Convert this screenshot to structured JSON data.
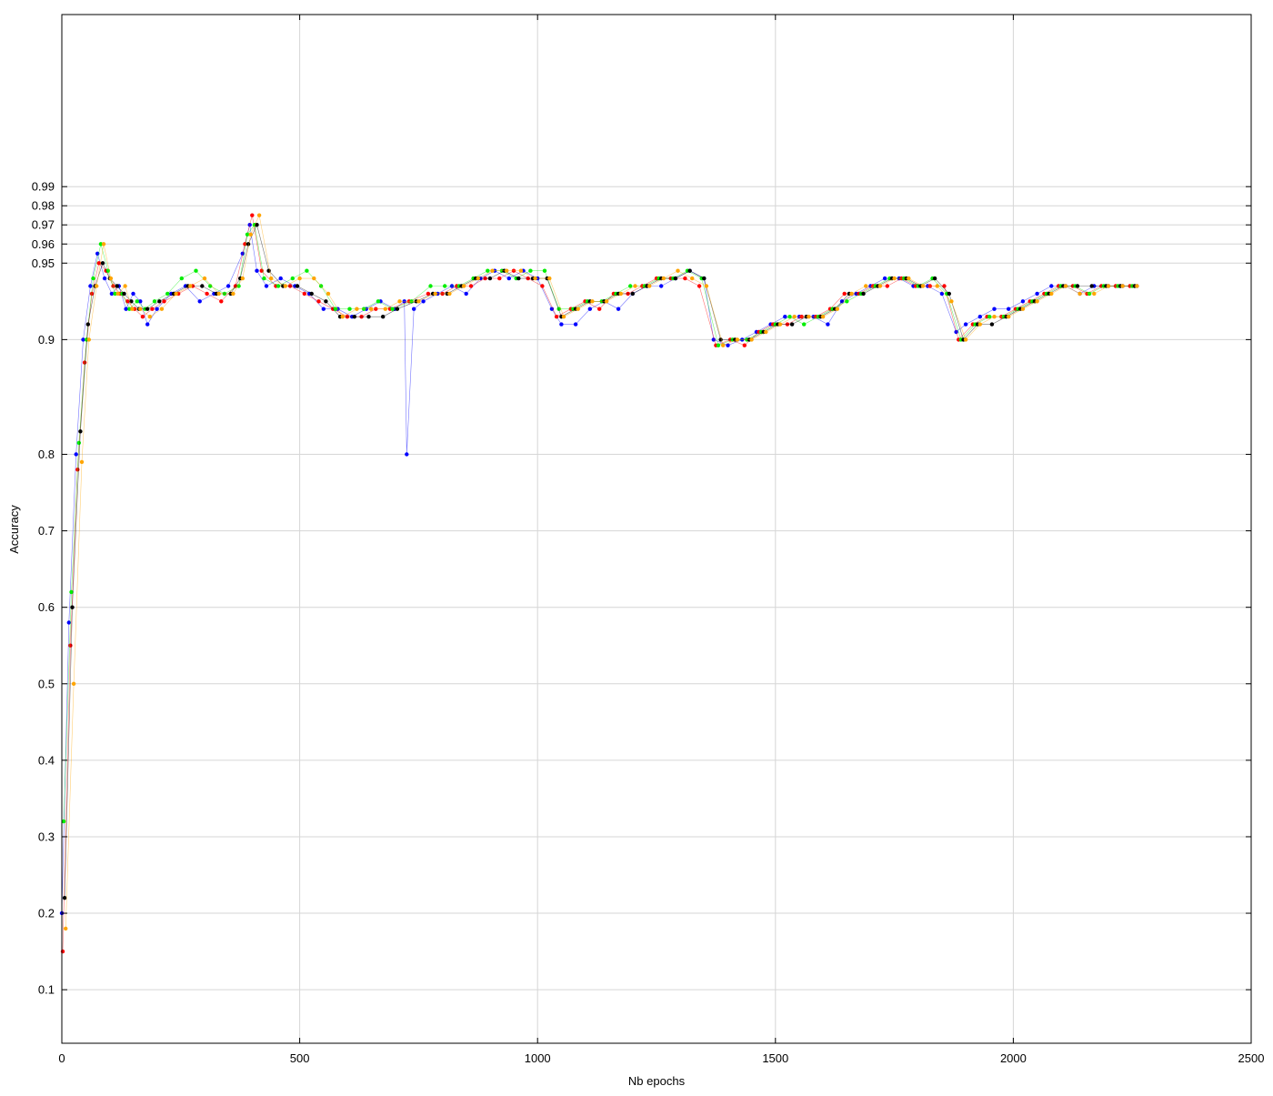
{
  "chart_data": {
    "type": "scatter",
    "title": "",
    "xlabel": "Nb epochs",
    "ylabel": "Accuracy",
    "xlim": [
      0,
      2500
    ],
    "ylim": [
      0.03,
      1.08
    ],
    "y_scale": "nonlinear, expanded near 1",
    "grid": true,
    "legend": "none",
    "x_ticks": [
      0,
      500,
      1000,
      1500,
      2000,
      2500
    ],
    "x_tick_labels": [
      "0",
      "500",
      "1000",
      "1500",
      "2000",
      "2500"
    ],
    "y_ticks": [
      0.1,
      0.2,
      0.3,
      0.4,
      0.5,
      0.6,
      0.7,
      0.8,
      0.9,
      0.95,
      0.96,
      0.97,
      0.98,
      0.99
    ],
    "y_tick_labels": [
      "0.1",
      "0.2",
      "0.3",
      "0.4",
      "0.5",
      "0.6",
      "0.7",
      "0.8",
      "0.9",
      "0.95",
      "0.96",
      "0.97",
      "0.98",
      "0.99"
    ],
    "series_colors": [
      "#0000ff",
      "#ff0000",
      "#00ee00",
      "#000000",
      "#ffa500"
    ],
    "series": [
      {
        "color": "#0000ff",
        "x": [
          0,
          15,
          30,
          45,
          60,
          75,
          90,
          105,
          120,
          135,
          150,
          165,
          180,
          200,
          230,
          260,
          290,
          320,
          350,
          380,
          395,
          410,
          430,
          460,
          490,
          520,
          550,
          580,
          610,
          640,
          670,
          700,
          720,
          725,
          740,
          760,
          790,
          820,
          850,
          880,
          910,
          940,
          970,
          1000,
          1030,
          1050,
          1080,
          1110,
          1140,
          1170,
          1200,
          1230,
          1260,
          1290,
          1320,
          1350,
          1370,
          1400,
          1430,
          1460,
          1490,
          1520,
          1550,
          1580,
          1610,
          1640,
          1670,
          1700,
          1730,
          1760,
          1790,
          1820,
          1850,
          1880,
          1900,
          1930,
          1960,
          1990,
          2020,
          2050,
          2080,
          2110,
          2140,
          2170,
          2200,
          2230,
          2260
        ],
        "y": [
          0.2,
          0.58,
          0.8,
          0.9,
          0.935,
          0.955,
          0.94,
          0.93,
          0.935,
          0.92,
          0.93,
          0.925,
          0.91,
          0.92,
          0.93,
          0.935,
          0.925,
          0.93,
          0.935,
          0.955,
          0.97,
          0.945,
          0.935,
          0.94,
          0.935,
          0.93,
          0.92,
          0.92,
          0.915,
          0.92,
          0.925,
          0.92,
          0.925,
          0.8,
          0.92,
          0.925,
          0.93,
          0.935,
          0.93,
          0.94,
          0.945,
          0.94,
          0.945,
          0.94,
          0.92,
          0.91,
          0.91,
          0.92,
          0.925,
          0.92,
          0.93,
          0.935,
          0.935,
          0.94,
          0.945,
          0.94,
          0.9,
          0.895,
          0.9,
          0.905,
          0.91,
          0.915,
          0.915,
          0.915,
          0.91,
          0.925,
          0.93,
          0.935,
          0.94,
          0.94,
          0.935,
          0.935,
          0.93,
          0.905,
          0.91,
          0.915,
          0.92,
          0.92,
          0.925,
          0.93,
          0.935,
          0.935,
          0.93,
          0.935,
          0.935,
          0.935,
          0.935
        ]
      },
      {
        "color": "#ff0000",
        "x": [
          2,
          18,
          33,
          48,
          63,
          78,
          93,
          108,
          123,
          138,
          153,
          170,
          190,
          215,
          245,
          275,
          305,
          335,
          365,
          385,
          400,
          420,
          450,
          480,
          510,
          540,
          570,
          600,
          630,
          660,
          690,
          730,
          770,
          800,
          830,
          860,
          890,
          920,
          950,
          980,
          1010,
          1040,
          1070,
          1100,
          1130,
          1160,
          1190,
          1220,
          1250,
          1280,
          1310,
          1340,
          1375,
          1405,
          1435,
          1465,
          1495,
          1525,
          1555,
          1585,
          1615,
          1645,
          1675,
          1705,
          1735,
          1765,
          1795,
          1825,
          1855,
          1885,
          1915,
          1945,
          1975,
          2005,
          2035,
          2065,
          2095,
          2125,
          2155,
          2185,
          2215,
          2245
        ],
        "y": [
          0.15,
          0.55,
          0.78,
          0.88,
          0.93,
          0.95,
          0.945,
          0.935,
          0.93,
          0.925,
          0.92,
          0.915,
          0.92,
          0.925,
          0.93,
          0.935,
          0.93,
          0.925,
          0.935,
          0.96,
          0.975,
          0.945,
          0.935,
          0.935,
          0.93,
          0.925,
          0.92,
          0.915,
          0.915,
          0.92,
          0.92,
          0.925,
          0.93,
          0.93,
          0.935,
          0.935,
          0.94,
          0.94,
          0.945,
          0.94,
          0.935,
          0.915,
          0.92,
          0.925,
          0.92,
          0.93,
          0.93,
          0.935,
          0.94,
          0.94,
          0.94,
          0.935,
          0.895,
          0.9,
          0.895,
          0.905,
          0.91,
          0.91,
          0.915,
          0.915,
          0.92,
          0.93,
          0.93,
          0.935,
          0.935,
          0.94,
          0.935,
          0.935,
          0.935,
          0.9,
          0.91,
          0.915,
          0.915,
          0.92,
          0.925,
          0.93,
          0.935,
          0.935,
          0.93,
          0.935,
          0.935,
          0.935
        ]
      },
      {
        "color": "#00ee00",
        "x": [
          4,
          20,
          36,
          52,
          66,
          82,
          97,
          112,
          127,
          142,
          158,
          175,
          195,
          222,
          252,
          282,
          312,
          342,
          372,
          390,
          405,
          425,
          455,
          485,
          515,
          545,
          575,
          605,
          635,
          665,
          695,
          735,
          775,
          805,
          835,
          865,
          895,
          925,
          955,
          985,
          1015,
          1045,
          1075,
          1105,
          1135,
          1165,
          1195,
          1225,
          1255,
          1285,
          1315,
          1345,
          1380,
          1410,
          1440,
          1470,
          1500,
          1530,
          1560,
          1590,
          1620,
          1650,
          1680,
          1710,
          1740,
          1770,
          1800,
          1830,
          1860,
          1890,
          1920,
          1950,
          1980,
          2010,
          2040,
          2070,
          2100,
          2130,
          2160,
          2190,
          2220,
          2250
        ],
        "y": [
          0.32,
          0.62,
          0.81,
          0.9,
          0.94,
          0.96,
          0.945,
          0.93,
          0.93,
          0.92,
          0.925,
          0.92,
          0.925,
          0.93,
          0.94,
          0.945,
          0.935,
          0.93,
          0.935,
          0.965,
          0.97,
          0.94,
          0.935,
          0.94,
          0.945,
          0.935,
          0.92,
          0.92,
          0.92,
          0.925,
          0.92,
          0.925,
          0.935,
          0.935,
          0.935,
          0.94,
          0.945,
          0.945,
          0.94,
          0.945,
          0.945,
          0.92,
          0.92,
          0.925,
          0.925,
          0.93,
          0.935,
          0.935,
          0.94,
          0.94,
          0.945,
          0.94,
          0.895,
          0.9,
          0.9,
          0.905,
          0.91,
          0.915,
          0.91,
          0.915,
          0.92,
          0.925,
          0.93,
          0.935,
          0.94,
          0.94,
          0.935,
          0.94,
          0.93,
          0.9,
          0.91,
          0.915,
          0.915,
          0.92,
          0.925,
          0.93,
          0.935,
          0.935,
          0.93,
          0.935,
          0.935,
          0.935
        ]
      },
      {
        "color": "#000000",
        "x": [
          6,
          22,
          39,
          55,
          70,
          86,
          101,
          116,
          131,
          146,
          162,
          180,
          205,
          235,
          265,
          295,
          325,
          355,
          375,
          392,
          410,
          435,
          465,
          495,
          525,
          555,
          585,
          615,
          645,
          675,
          705,
          745,
          780,
          810,
          840,
          870,
          900,
          930,
          960,
          990,
          1020,
          1050,
          1080,
          1110,
          1140,
          1170,
          1200,
          1230,
          1260,
          1290,
          1320,
          1350,
          1385,
          1415,
          1445,
          1475,
          1505,
          1535,
          1565,
          1595,
          1625,
          1655,
          1685,
          1715,
          1745,
          1775,
          1805,
          1835,
          1865,
          1895,
          1925,
          1955,
          1985,
          2015,
          2045,
          2075,
          2105,
          2135,
          2165,
          2195,
          2225,
          2255
        ],
        "y": [
          0.22,
          0.6,
          0.82,
          0.91,
          0.935,
          0.95,
          0.94,
          0.935,
          0.93,
          0.925,
          0.92,
          0.92,
          0.925,
          0.93,
          0.935,
          0.935,
          0.93,
          0.93,
          0.94,
          0.96,
          0.97,
          0.945,
          0.935,
          0.935,
          0.93,
          0.925,
          0.915,
          0.915,
          0.915,
          0.915,
          0.92,
          0.925,
          0.93,
          0.93,
          0.935,
          0.94,
          0.94,
          0.945,
          0.94,
          0.94,
          0.94,
          0.915,
          0.92,
          0.925,
          0.925,
          0.93,
          0.93,
          0.935,
          0.94,
          0.94,
          0.945,
          0.94,
          0.9,
          0.9,
          0.9,
          0.905,
          0.91,
          0.91,
          0.915,
          0.915,
          0.92,
          0.93,
          0.93,
          0.935,
          0.94,
          0.94,
          0.935,
          0.94,
          0.93,
          0.9,
          0.91,
          0.91,
          0.915,
          0.92,
          0.925,
          0.93,
          0.935,
          0.935,
          0.935,
          0.935,
          0.935,
          0.935
        ]
      },
      {
        "color": "#ffa500",
        "x": [
          8,
          25,
          42,
          57,
          73,
          88,
          103,
          118,
          133,
          148,
          165,
          185,
          210,
          240,
          270,
          300,
          330,
          360,
          380,
          397,
          415,
          440,
          470,
          500,
          530,
          560,
          590,
          620,
          650,
          680,
          710,
          750,
          785,
          815,
          845,
          875,
          905,
          935,
          965,
          995,
          1025,
          1055,
          1085,
          1115,
          1145,
          1175,
          1205,
          1235,
          1265,
          1295,
          1325,
          1355,
          1390,
          1420,
          1450,
          1480,
          1510,
          1540,
          1570,
          1600,
          1630,
          1660,
          1690,
          1720,
          1750,
          1780,
          1810,
          1840,
          1870,
          1900,
          1930,
          1960,
          1990,
          2020,
          2050,
          2080,
          2110,
          2140,
          2170,
          2200,
          2230,
          2260
        ],
        "y": [
          0.18,
          0.5,
          0.79,
          0.9,
          0.935,
          0.96,
          0.94,
          0.93,
          0.935,
          0.92,
          0.92,
          0.915,
          0.92,
          0.93,
          0.935,
          0.94,
          0.93,
          0.93,
          0.94,
          0.965,
          0.975,
          0.94,
          0.935,
          0.94,
          0.94,
          0.93,
          0.915,
          0.92,
          0.92,
          0.92,
          0.925,
          0.925,
          0.93,
          0.93,
          0.935,
          0.94,
          0.945,
          0.945,
          0.945,
          0.94,
          0.94,
          0.915,
          0.92,
          0.925,
          0.925,
          0.93,
          0.935,
          0.935,
          0.94,
          0.945,
          0.94,
          0.935,
          0.895,
          0.9,
          0.9,
          0.905,
          0.91,
          0.915,
          0.915,
          0.915,
          0.92,
          0.93,
          0.935,
          0.935,
          0.94,
          0.94,
          0.935,
          0.935,
          0.925,
          0.9,
          0.91,
          0.915,
          0.915,
          0.92,
          0.925,
          0.93,
          0.935,
          0.93,
          0.93,
          0.935,
          0.935,
          0.935
        ]
      }
    ]
  }
}
